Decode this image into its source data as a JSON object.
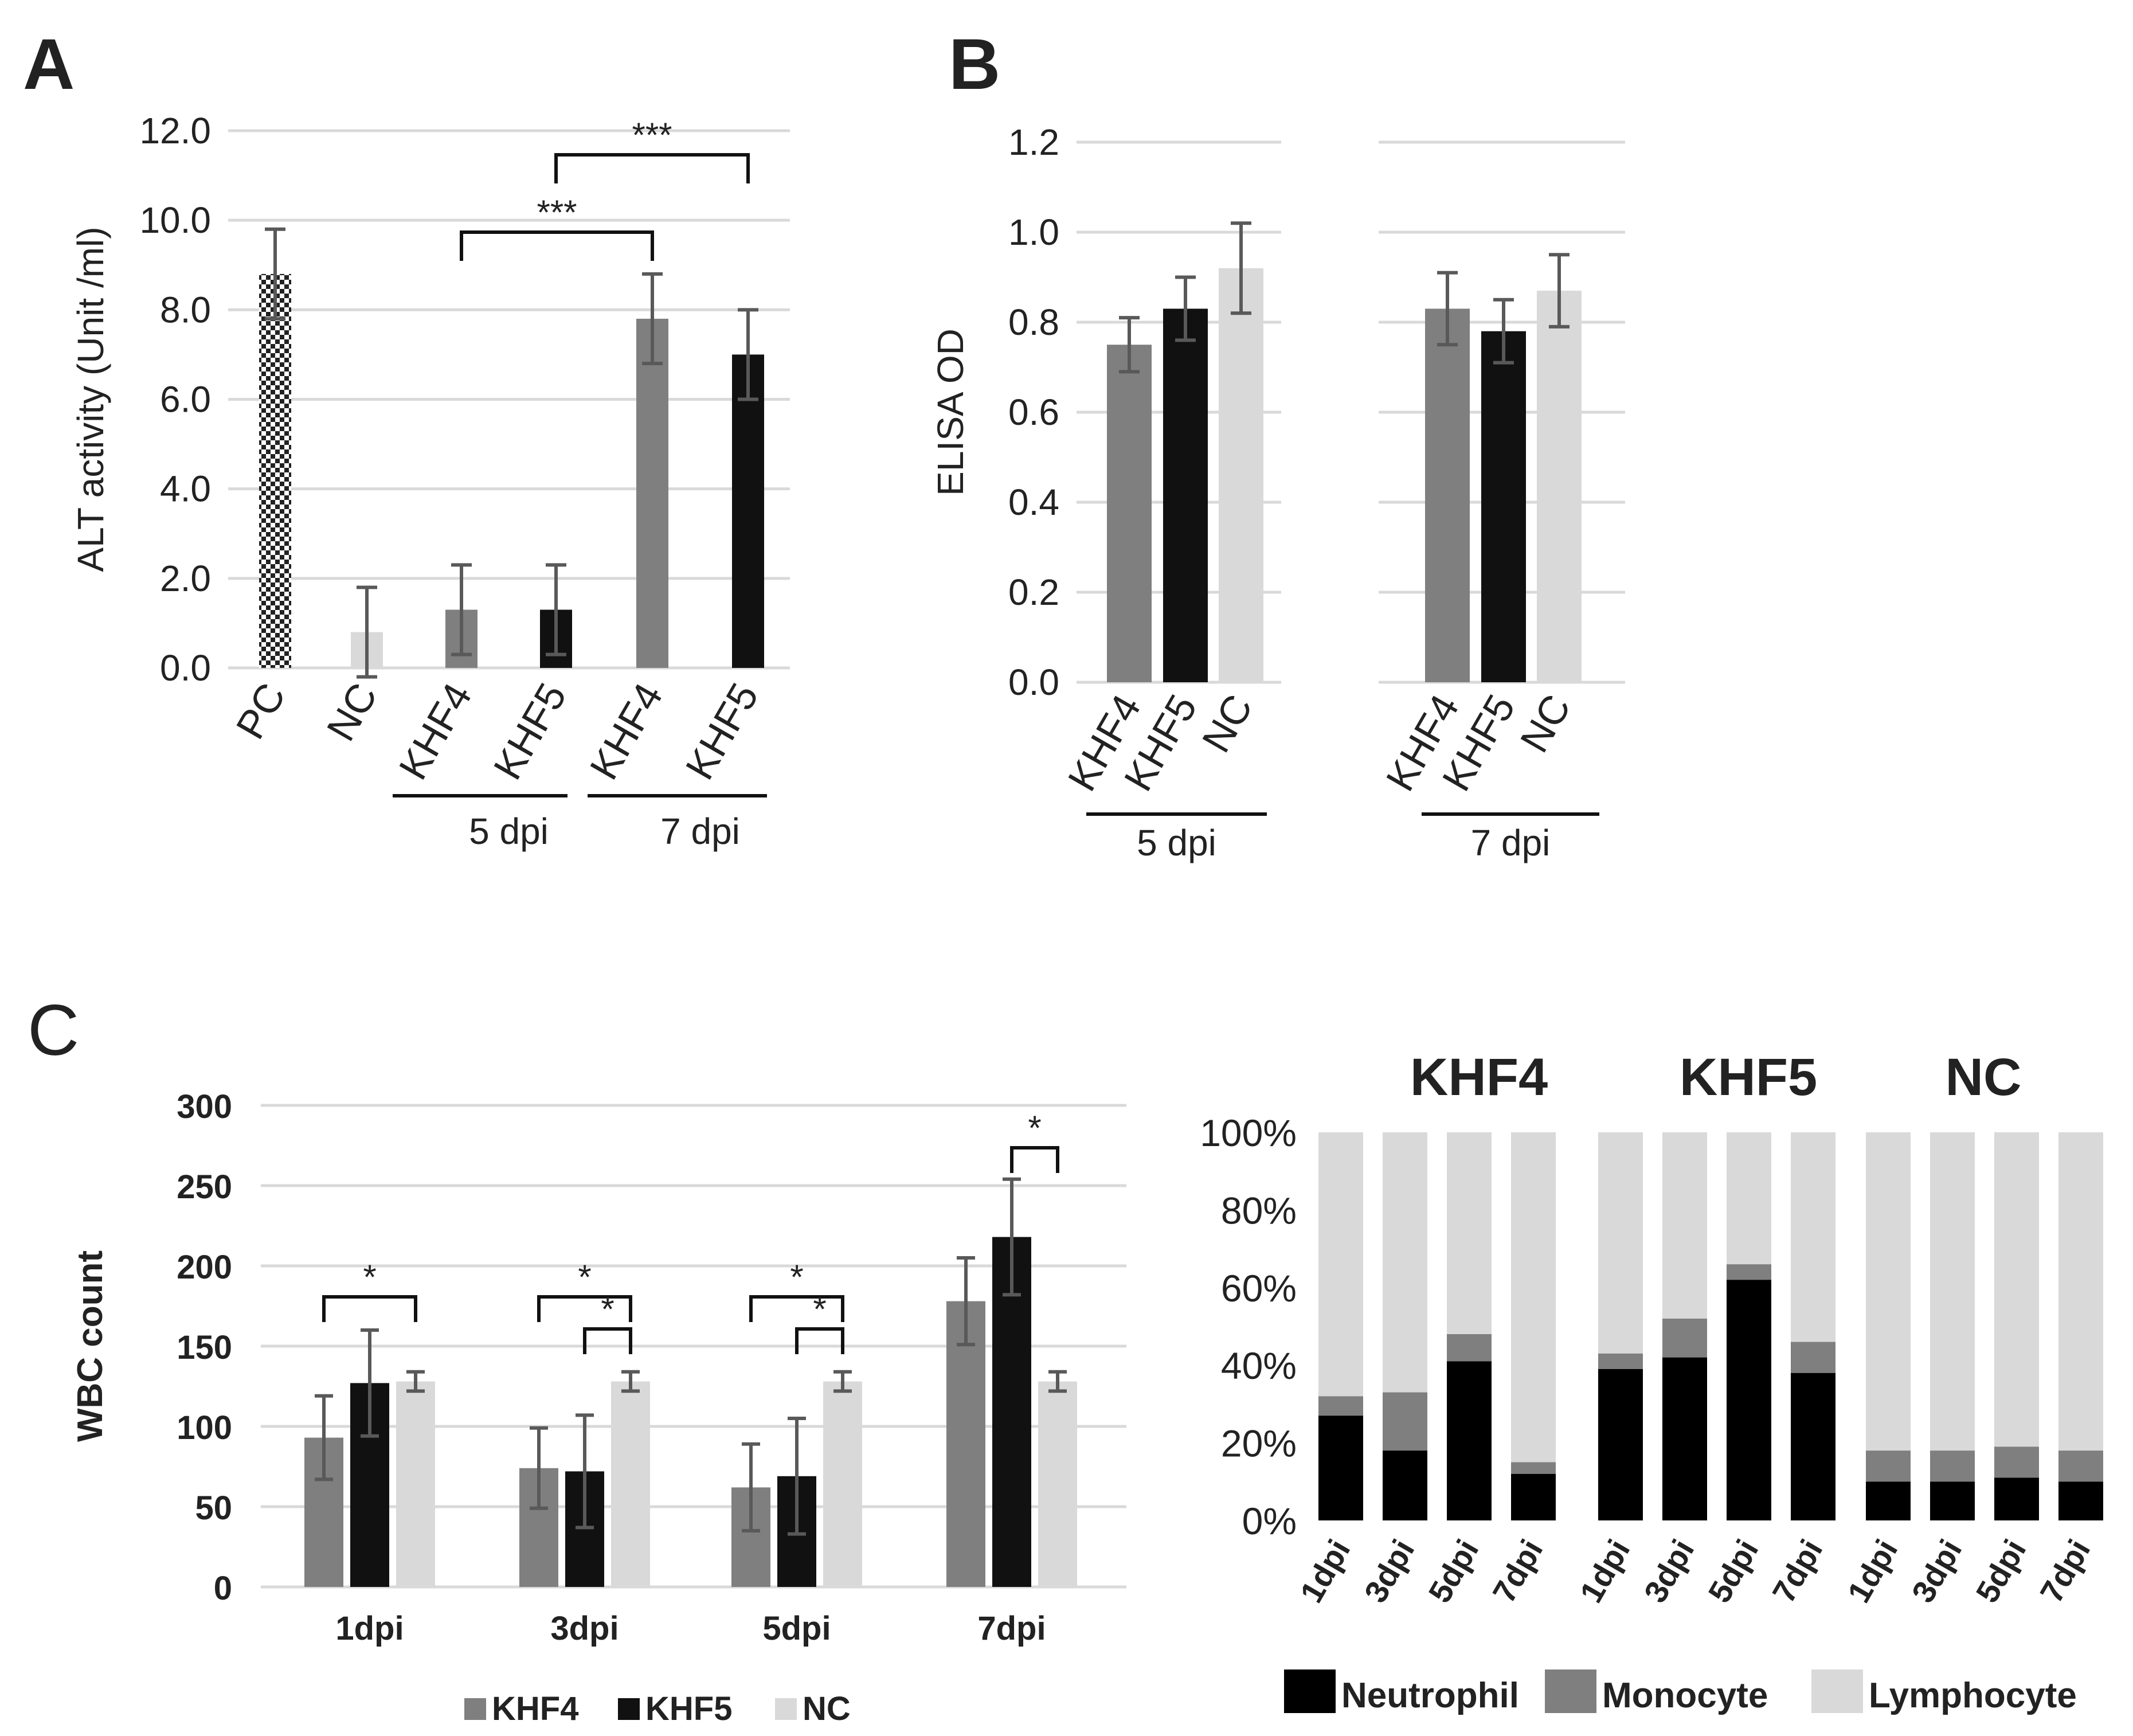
{
  "colors": {
    "khf4": "#7f7f7f",
    "khf5": "#111111",
    "nc": "#d9d9d9",
    "grid": "#d9d9d9",
    "error_bar": "#595959",
    "neutrophil": "#000000",
    "monocyte": "#7f7f7f",
    "lymphocyte": "#d9d9d9"
  },
  "chart_data": [
    {
      "panel": "A",
      "type": "bar",
      "ylabel": "ALT activity (Unit /ml)",
      "ylim": [
        0,
        12
      ],
      "yticks": [
        "0.0",
        "2.0",
        "4.0",
        "6.0",
        "8.0",
        "10.0",
        "12.0"
      ],
      "categories": [
        "PC",
        "NC",
        "KHF4",
        "KHF5",
        "KHF4",
        "KHF5"
      ],
      "values": [
        8.8,
        0.8,
        1.3,
        1.3,
        7.8,
        7.0
      ],
      "errors": [
        1.0,
        1.0,
        1.0,
        1.0,
        1.0,
        1.0
      ],
      "bar_styles": [
        "checker",
        "nc",
        "khf4",
        "khf5",
        "khf4",
        "khf5"
      ],
      "groups": [
        {
          "label": "5 dpi",
          "members": [
            2,
            3
          ]
        },
        {
          "label": "7 dpi",
          "members": [
            4,
            5
          ]
        }
      ],
      "significance": [
        {
          "from": 2,
          "to": 4,
          "label": "***"
        },
        {
          "from": 3,
          "to": 5,
          "label": "***"
        }
      ],
      "grid": true
    },
    {
      "panel": "B",
      "type": "bar",
      "ylabel": "ELISA OD",
      "ylim": [
        0,
        1.2
      ],
      "yticks": [
        "0.0",
        "0.2",
        "0.4",
        "0.6",
        "0.8",
        "1.0",
        "1.2"
      ],
      "groups": [
        {
          "label": "5 dpi",
          "categories": [
            "KHF4",
            "KHF5",
            "NC"
          ],
          "values": [
            0.75,
            0.83,
            0.92
          ],
          "errors": [
            0.06,
            0.07,
            0.1
          ]
        },
        {
          "label": "7 dpi",
          "categories": [
            "KHF4",
            "KHF5",
            "NC"
          ],
          "values": [
            0.83,
            0.78,
            0.87
          ],
          "errors": [
            0.08,
            0.07,
            0.08
          ]
        }
      ],
      "grid": true
    },
    {
      "panel": "C",
      "type": "bar",
      "ylabel": "WBC count",
      "ylim": [
        0,
        300
      ],
      "yticks": [
        "0",
        "50",
        "100",
        "150",
        "200",
        "250",
        "300"
      ],
      "categories": [
        "1dpi",
        "3dpi",
        "5dpi",
        "7dpi"
      ],
      "series": [
        {
          "name": "KHF4",
          "values": [
            93,
            74,
            62,
            178
          ],
          "errors": [
            26,
            25,
            27,
            27
          ]
        },
        {
          "name": "KHF5",
          "values": [
            127,
            72,
            69,
            218
          ],
          "errors": [
            33,
            35,
            36,
            36
          ]
        },
        {
          "name": "NC",
          "values": [
            128,
            128,
            128,
            128
          ],
          "errors": [
            6,
            6,
            6,
            6
          ]
        }
      ],
      "significance": [
        {
          "category": 0,
          "from": 0,
          "to": 2,
          "label": "*",
          "level": 1
        },
        {
          "category": 1,
          "from": 0,
          "to": 2,
          "label": "*",
          "level": 1
        },
        {
          "category": 1,
          "from": 1,
          "to": 2,
          "label": "*",
          "level": 0
        },
        {
          "category": 2,
          "from": 0,
          "to": 2,
          "label": "*",
          "level": 1
        },
        {
          "category": 2,
          "from": 1,
          "to": 2,
          "label": "*",
          "level": 0
        },
        {
          "category": 3,
          "from": 1,
          "to": 2,
          "label": "*",
          "level": 2
        }
      ],
      "legend": "bottom",
      "grid": true
    },
    {
      "panel": "C",
      "type": "bar",
      "stacked": true,
      "ylim": [
        0,
        100
      ],
      "yticks": [
        "0%",
        "20%",
        "40%",
        "60%",
        "80%",
        "100%"
      ],
      "series_names": [
        "Neutrophil",
        "Monocyte",
        "Lymphocyte"
      ],
      "groups": [
        {
          "title": "KHF4",
          "categories": [
            "1dpi",
            "3dpi",
            "5dpi",
            "7dpi"
          ],
          "neutrophil": [
            27,
            18,
            41,
            12
          ],
          "monocyte": [
            5,
            15,
            7,
            3
          ]
        },
        {
          "title": "KHF5",
          "categories": [
            "1dpi",
            "3dpi",
            "5dpi",
            "7dpi"
          ],
          "neutrophil": [
            39,
            42,
            62,
            38
          ],
          "monocyte": [
            4,
            10,
            4,
            8
          ]
        },
        {
          "title": "NC",
          "categories": [
            "1dpi",
            "3dpi",
            "5dpi",
            "7dpi"
          ],
          "neutrophil": [
            10,
            10,
            11,
            10
          ],
          "monocyte": [
            8,
            8,
            8,
            8
          ]
        }
      ],
      "legend": "bottom",
      "grid": false
    }
  ],
  "panel_labels": {
    "a": "A",
    "b": "B",
    "c": "C"
  }
}
